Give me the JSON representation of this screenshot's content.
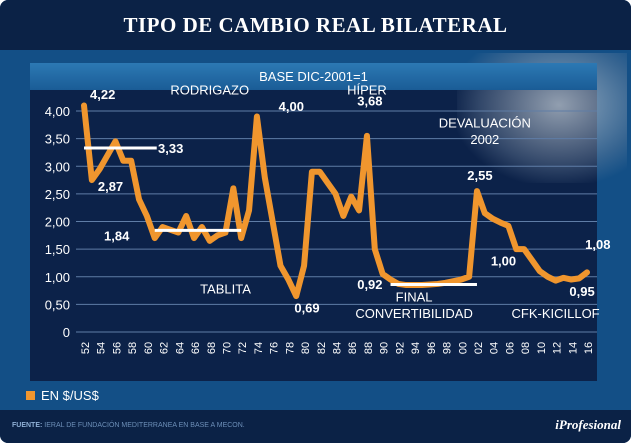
{
  "header": {
    "title": "TIPO DE CAMBIO REAL BILATERAL"
  },
  "chart_data": {
    "type": "line",
    "title": "TIPO DE CAMBIO REAL BILATERAL",
    "subtitle": "BASE DIC-2001=1",
    "xlabel": "",
    "ylabel": "",
    "ylim": [
      0,
      4.0
    ],
    "y_ticks": [
      "0",
      "0,50",
      "1,00",
      "1,50",
      "2,00",
      "2,50",
      "3,00",
      "3,50",
      "4,00"
    ],
    "y_tick_values": [
      0,
      0.5,
      1,
      1.5,
      2,
      2.5,
      3,
      3.5,
      4
    ],
    "x_ticks": [
      "52",
      "54",
      "56",
      "58",
      "60",
      "62",
      "64",
      "66",
      "68",
      "70",
      "72",
      "74",
      "76",
      "78",
      "80",
      "82",
      "84",
      "86",
      "88",
      "90",
      "92",
      "94",
      "96",
      "98",
      "00",
      "02",
      "04",
      "06",
      "08",
      "10",
      "12",
      "14",
      "16"
    ],
    "x_range": [
      1952,
      2016
    ],
    "grid": true,
    "legend_position": "bottom-left",
    "series": [
      {
        "name": "EN $/US$",
        "color": "#f0962e",
        "x": [
          1952,
          1953,
          1954,
          1955,
          1956,
          1957,
          1958,
          1959,
          1960,
          1961,
          1962,
          1963,
          1964,
          1965,
          1966,
          1967,
          1968,
          1969,
          1970,
          1971,
          1972,
          1973,
          1974,
          1975,
          1976,
          1977,
          1978,
          1979,
          1980,
          1981,
          1982,
          1983,
          1984,
          1985,
          1986,
          1987,
          1988,
          1989,
          1990,
          1991,
          1992,
          1993,
          1994,
          1995,
          1996,
          1997,
          1998,
          1999,
          2000,
          2001,
          2002,
          2003,
          2004,
          2005,
          2006,
          2007,
          2008,
          2009,
          2010,
          2011,
          2012,
          2013,
          2014,
          2015,
          2016
        ],
        "values": [
          4.1,
          2.75,
          2.95,
          3.2,
          3.45,
          3.1,
          3.1,
          2.4,
          2.1,
          1.7,
          1.9,
          1.85,
          1.8,
          2.1,
          1.7,
          1.9,
          1.65,
          1.75,
          1.8,
          2.6,
          1.7,
          2.2,
          3.9,
          2.8,
          2.0,
          1.2,
          0.95,
          0.65,
          1.2,
          2.9,
          2.9,
          2.7,
          2.5,
          2.1,
          2.45,
          2.2,
          3.55,
          1.5,
          1.05,
          0.95,
          0.87,
          0.85,
          0.85,
          0.85,
          0.86,
          0.87,
          0.89,
          0.92,
          0.95,
          1.0,
          2.55,
          2.15,
          2.05,
          1.98,
          1.92,
          1.5,
          1.5,
          1.3,
          1.1,
          1.0,
          0.93,
          0.98,
          0.95,
          0.97,
          1.08
        ]
      }
    ],
    "averages": [
      {
        "value": 3.33,
        "from": 1952,
        "to": 1961,
        "label": "3,33"
      },
      {
        "value": 1.84,
        "from": 1961,
        "to": 1972,
        "label": "1,84"
      },
      {
        "value": 0.86,
        "from": 1991,
        "to": 2002,
        "label": ""
      }
    ],
    "data_labels": [
      {
        "text": "4,22",
        "x": 1952,
        "y": 4.22
      },
      {
        "text": "2,87",
        "x": 1953,
        "y": 2.55
      },
      {
        "text": "4,00",
        "x": 1976,
        "y": 4.0
      },
      {
        "text": "0,69",
        "x": 1978,
        "y": 0.35
      },
      {
        "text": "3,68",
        "x": 1986,
        "y": 4.1
      },
      {
        "text": "0,92",
        "x": 1986,
        "y": 0.78
      },
      {
        "text": "2,55",
        "x": 2000,
        "y": 2.75
      },
      {
        "text": "1,00",
        "x": 2003,
        "y": 1.2
      },
      {
        "text": "0,95",
        "x": 2013,
        "y": 0.65
      },
      {
        "text": "1,08",
        "x": 2015,
        "y": 1.5
      }
    ],
    "annotations": [
      {
        "text": "RODRIGAZO",
        "x": 1968,
        "y": 4.3
      },
      {
        "text": "HÍPER",
        "x": 1988,
        "y": 4.3
      },
      {
        "text": "DEVALUACIÓN",
        "x": 2003,
        "y": 3.7
      },
      {
        "text": "2002",
        "x": 2003,
        "y": 3.4
      },
      {
        "text": "TABLITA",
        "x": 1970,
        "y": 0.7
      },
      {
        "text": "FINAL",
        "x": 1994,
        "y": 0.55
      },
      {
        "text": "CONVERTIBILIDAD",
        "x": 1994,
        "y": 0.25
      },
      {
        "text": "CFK-KICILLOF",
        "x": 2012,
        "y": 0.25
      }
    ]
  },
  "legend": {
    "label": "EN $/US$"
  },
  "footer": {
    "source_prefix": "FUENTE:",
    "source_text": " IERAL DE FUNDACIÓN MEDITERRANEA EN BASE A MECON.",
    "brand": "iProfesional"
  }
}
